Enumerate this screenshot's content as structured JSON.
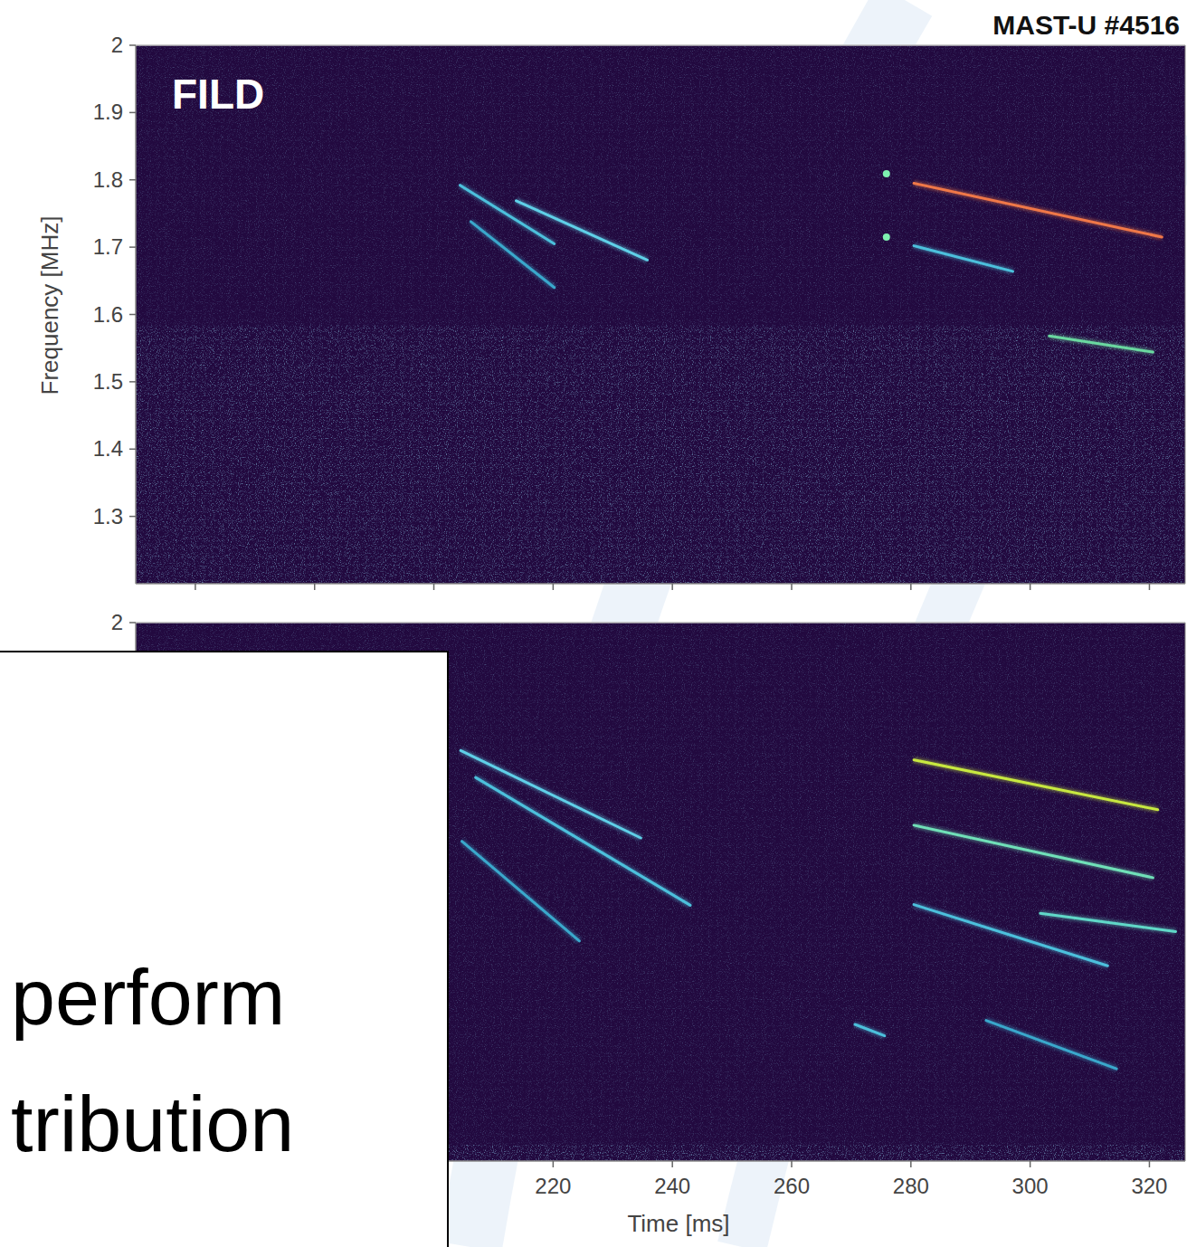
{
  "chart_data": [
    {
      "type": "line",
      "title": "MAST-U #4516",
      "annotations": [
        "FILD"
      ],
      "ylabel": "Frequency [MHz]",
      "xlim": [
        150,
        326
      ],
      "ylim": [
        1.2,
        2
      ],
      "xticks": [
        160,
        180,
        200,
        220,
        240,
        260,
        280,
        300,
        320
      ],
      "yticks": [
        1.3,
        1.4,
        1.5,
        1.6,
        1.7,
        1.8,
        1.9,
        2
      ],
      "tick_labels": "y",
      "series": [
        {
          "color": "#5fd0e8",
          "x": [
            213.8,
            235.8
          ],
          "values": [
            1.769,
            1.681
          ]
        },
        {
          "color": "#4cc0dc",
          "x": [
            204.4,
            220.2
          ],
          "values": [
            1.792,
            1.705
          ]
        },
        {
          "color": "#3aa8cc",
          "x": [
            206.2,
            220.2
          ],
          "values": [
            1.738,
            1.64
          ]
        },
        {
          "color": "#f07848",
          "x": [
            280.5,
            322.1
          ],
          "values": [
            1.795,
            1.715
          ]
        },
        {
          "color": "#4cc0dc",
          "x": [
            280.5,
            297.1
          ],
          "values": [
            1.702,
            1.664
          ]
        },
        {
          "color": "#6ad8a0",
          "x": [
            303.2,
            320.6
          ],
          "values": [
            1.568,
            1.544
          ]
        },
        {
          "type": "scatter",
          "color": "#7ef0b0",
          "x": [
            275.9,
            275.9
          ],
          "values": [
            1.809,
            1.715
          ]
        }
      ]
    },
    {
      "type": "line",
      "xlabel": "Time [ms]",
      "xlim": [
        150,
        326
      ],
      "ylim": [
        1.2,
        2
      ],
      "xticks": [
        220,
        240,
        260,
        280,
        300,
        320
      ],
      "yticks": [
        2
      ],
      "series": [
        {
          "color": "#5fd0e8",
          "x": [
            204.5,
            234.7
          ],
          "values": [
            1.81,
            1.68
          ]
        },
        {
          "color": "#4cc0dc",
          "x": [
            207,
            243
          ],
          "values": [
            1.77,
            1.58
          ]
        },
        {
          "color": "#3aa8cc",
          "x": [
            204.7,
            224.4
          ],
          "values": [
            1.675,
            1.527
          ]
        },
        {
          "color": "#c8e840",
          "x": [
            280.5,
            321.4
          ],
          "values": [
            1.796,
            1.722
          ]
        },
        {
          "color": "#70e0b8",
          "x": [
            280.5,
            320.6
          ],
          "values": [
            1.699,
            1.621
          ]
        },
        {
          "color": "#4cc0dc",
          "x": [
            280.5,
            313
          ],
          "values": [
            1.581,
            1.49
          ]
        },
        {
          "color": "#60d8c8",
          "x": [
            301.7,
            324.4
          ],
          "values": [
            1.568,
            1.541
          ]
        },
        {
          "color": "#3aa8cc",
          "x": [
            292.6,
            314.5
          ],
          "values": [
            1.409,
            1.337
          ]
        },
        {
          "color": "#4cc0dc",
          "x": [
            270.6,
            275.6
          ],
          "values": [
            1.403,
            1.386
          ]
        }
      ]
    }
  ],
  "overlay": {
    "lines": [
      "perform",
      "tribution"
    ]
  }
}
